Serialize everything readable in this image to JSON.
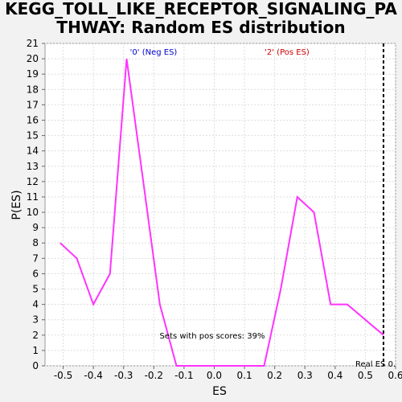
{
  "chart_data": {
    "type": "line",
    "title_line1": "KEGG_TOLL_LIKE_RECEPTOR_SIGNALING_PA",
    "title_line2": "THWAY: Random ES distribution",
    "xlabel": "ES",
    "ylabel": "P(ES)",
    "xlim": [
      -0.56,
      0.6
    ],
    "ylim": [
      0,
      21
    ],
    "xticks": [
      -0.5,
      -0.4,
      -0.3,
      -0.2,
      -0.1,
      0.0,
      0.1,
      0.2,
      0.3,
      0.4,
      0.5,
      0.6
    ],
    "xtick_labels": [
      "-0.5",
      "-0.4",
      "-0.3",
      "-0.2",
      "-0.1",
      "0.0",
      "0.1",
      "0.2",
      "0.3",
      "0.4",
      "0.5",
      "0.6"
    ],
    "yticks": [
      0,
      1,
      2,
      3,
      4,
      5,
      6,
      7,
      8,
      9,
      10,
      11,
      12,
      13,
      14,
      15,
      16,
      17,
      18,
      19,
      20,
      21
    ],
    "grid": true,
    "series": [
      {
        "name": "Random ES distribution",
        "color": "#ff33ff",
        "x": [
          -0.51,
          -0.455,
          -0.4,
          -0.345,
          -0.29,
          -0.235,
          -0.18,
          -0.125,
          -0.07,
          -0.015,
          0.04,
          0.095,
          0.15,
          0.165,
          0.22,
          0.275,
          0.33,
          0.385,
          0.44,
          0.56
        ],
        "y": [
          8,
          7,
          4,
          6,
          20,
          12,
          4,
          0,
          0,
          0,
          0,
          0,
          0,
          0,
          5,
          11,
          10,
          4,
          4,
          2
        ]
      }
    ],
    "real_es": 0.56,
    "annotations": {
      "neg_label": "'0' (Neg ES)",
      "neg_color": "#0000cc",
      "pos_label": "'2' (Pos ES)",
      "pos_color": "#cc0000",
      "pos_scores_text": "Sets with pos scores: 39%",
      "real_es_label": "Real ES 0."
    }
  }
}
